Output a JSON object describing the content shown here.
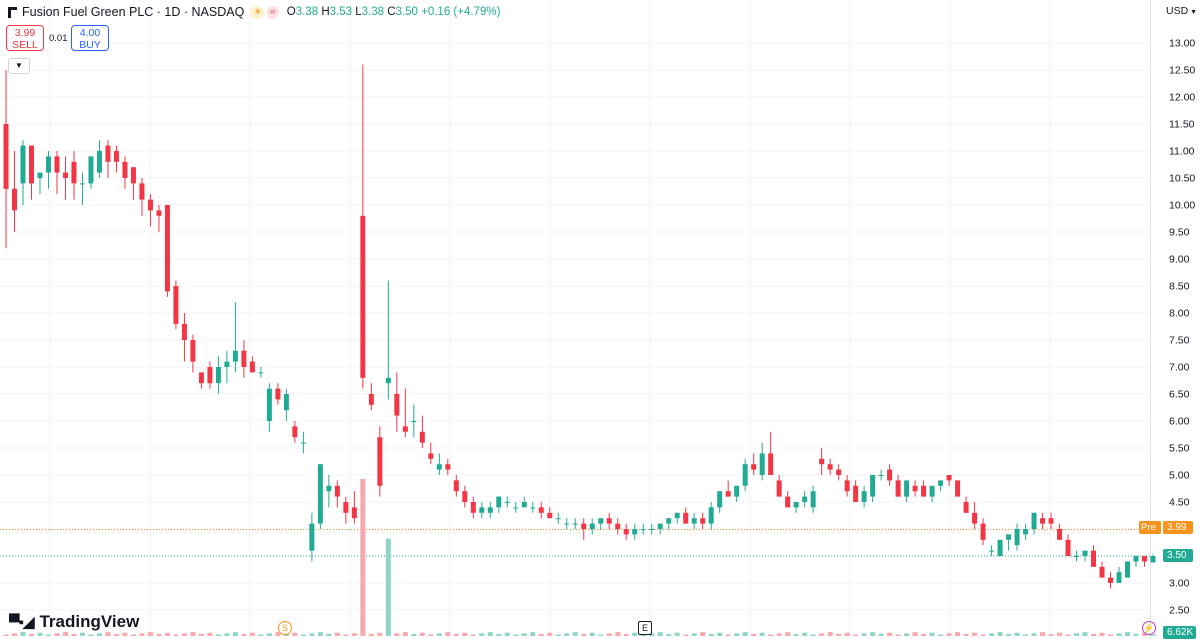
{
  "header": {
    "title": "Fusion Fuel Green PLC · 1D · NASDAQ",
    "o_label": "O",
    "o_value": "3.38",
    "h_label": "H",
    "h_value": "3.53",
    "l_label": "L",
    "l_value": "3.38",
    "c_label": "C",
    "c_value": "3.50",
    "change": "+0.16 (+4.79%)"
  },
  "trade": {
    "sell_price": "3.99",
    "sell_label": "SELL",
    "spread": "0.01",
    "buy_price": "4.00",
    "buy_label": "BUY"
  },
  "currency": "USD",
  "branding": "TradingView",
  "markers": {
    "pre_label": "Pre",
    "pre_price": "3.99",
    "last_price": "3.50",
    "volume": "6.62K"
  },
  "events": {
    "split": "S",
    "earnings": "E"
  },
  "icons": [
    "tradingview-logo-icon",
    "collapse-chevron-icon",
    "currency-dropdown-icon",
    "lightning-icon",
    "sun-icon",
    "approx-icon"
  ],
  "colors": {
    "up": "#22ab94",
    "down": "#f23645",
    "up_volume": "#8fd5c9",
    "down_volume": "#f8a8ae",
    "pre": "#f7931a",
    "grid": "#f0f3fa"
  },
  "chart_data": {
    "type": "candlestick",
    "ylim": [
      2.5,
      13.25
    ],
    "yticks": [
      "13.00",
      "12.50",
      "12.00",
      "11.50",
      "11.00",
      "10.50",
      "10.00",
      "9.50",
      "9.00",
      "8.50",
      "8.00",
      "7.50",
      "7.00",
      "6.50",
      "6.00",
      "5.50",
      "5.00",
      "4.50",
      "4.00",
      "3.50",
      "3.00",
      "2.50"
    ],
    "pre_market_price": 3.99,
    "last_price": 3.5,
    "ohlc": [
      [
        11.5,
        12.5,
        9.2,
        10.3
      ],
      [
        10.3,
        11.0,
        9.5,
        9.9
      ],
      [
        10.4,
        11.2,
        10.0,
        11.1
      ],
      [
        11.1,
        11.1,
        10.1,
        10.4
      ],
      [
        10.5,
        10.6,
        10.2,
        10.6
      ],
      [
        10.6,
        11.0,
        10.3,
        10.9
      ],
      [
        10.9,
        11.0,
        10.2,
        10.6
      ],
      [
        10.6,
        10.9,
        10.1,
        10.5
      ],
      [
        10.8,
        11.0,
        10.1,
        10.4
      ],
      [
        10.4,
        10.6,
        10.0,
        10.4
      ],
      [
        10.4,
        10.9,
        10.3,
        10.9
      ],
      [
        10.6,
        11.2,
        10.5,
        11.0
      ],
      [
        11.1,
        11.2,
        10.5,
        10.8
      ],
      [
        11.0,
        11.1,
        10.6,
        10.8
      ],
      [
        10.8,
        10.9,
        10.3,
        10.5
      ],
      [
        10.7,
        10.7,
        10.1,
        10.4
      ],
      [
        10.4,
        10.5,
        9.8,
        10.1
      ],
      [
        10.1,
        10.2,
        9.6,
        9.9
      ],
      [
        9.9,
        10.0,
        9.5,
        9.8
      ],
      [
        10.0,
        10.0,
        8.3,
        8.4
      ],
      [
        8.5,
        8.6,
        7.7,
        7.8
      ],
      [
        7.8,
        8.0,
        7.1,
        7.5
      ],
      [
        7.5,
        7.6,
        6.9,
        7.1
      ],
      [
        6.9,
        6.9,
        6.6,
        6.7
      ],
      [
        7.0,
        7.1,
        6.6,
        6.7
      ],
      [
        6.7,
        7.2,
        6.5,
        7.0
      ],
      [
        7.0,
        7.3,
        6.7,
        7.1
      ],
      [
        7.1,
        8.2,
        6.9,
        7.3
      ],
      [
        7.3,
        7.5,
        6.8,
        7.0
      ],
      [
        7.1,
        7.2,
        6.9,
        6.9
      ],
      [
        6.9,
        7.0,
        6.8,
        6.9
      ],
      [
        6.0,
        6.7,
        5.8,
        6.6
      ],
      [
        6.6,
        6.7,
        6.3,
        6.4
      ],
      [
        6.2,
        6.6,
        6.0,
        6.5
      ],
      [
        5.9,
        6.0,
        5.6,
        5.7
      ],
      [
        5.6,
        5.8,
        5.4,
        5.6
      ],
      [
        3.6,
        4.3,
        3.4,
        4.1
      ],
      [
        4.1,
        5.2,
        4.0,
        5.2
      ],
      [
        4.7,
        5.0,
        4.4,
        4.8
      ],
      [
        4.8,
        4.9,
        4.4,
        4.6
      ],
      [
        4.5,
        4.6,
        4.1,
        4.3
      ],
      [
        4.4,
        4.7,
        4.1,
        4.2
      ],
      [
        9.8,
        12.6,
        6.6,
        6.8
      ],
      [
        6.5,
        6.7,
        6.2,
        6.3
      ],
      [
        5.7,
        5.9,
        4.6,
        4.8
      ],
      [
        6.7,
        8.6,
        6.4,
        6.8
      ],
      [
        6.5,
        6.9,
        5.8,
        6.1
      ],
      [
        5.9,
        6.6,
        5.7,
        5.8
      ],
      [
        6.0,
        6.3,
        5.7,
        6.0
      ],
      [
        5.8,
        6.1,
        5.5,
        5.6
      ],
      [
        5.4,
        5.6,
        5.2,
        5.3
      ],
      [
        5.1,
        5.4,
        5.0,
        5.2
      ],
      [
        5.2,
        5.3,
        5.0,
        5.1
      ],
      [
        4.9,
        5.0,
        4.6,
        4.7
      ],
      [
        4.7,
        4.8,
        4.4,
        4.5
      ],
      [
        4.5,
        4.6,
        4.2,
        4.3
      ],
      [
        4.3,
        4.5,
        4.2,
        4.4
      ],
      [
        4.3,
        4.5,
        4.2,
        4.4
      ],
      [
        4.4,
        4.6,
        4.3,
        4.6
      ],
      [
        4.5,
        4.6,
        4.4,
        4.5
      ],
      [
        4.4,
        4.5,
        4.3,
        4.4
      ],
      [
        4.4,
        4.6,
        4.4,
        4.5
      ],
      [
        4.4,
        4.5,
        4.3,
        4.4
      ],
      [
        4.4,
        4.5,
        4.2,
        4.3
      ],
      [
        4.3,
        4.4,
        4.2,
        4.2
      ],
      [
        4.2,
        4.3,
        4.1,
        4.2
      ],
      [
        4.1,
        4.2,
        4.0,
        4.1
      ],
      [
        4.1,
        4.2,
        4.0,
        4.1
      ],
      [
        4.1,
        4.2,
        3.8,
        4.0
      ],
      [
        4.0,
        4.2,
        3.9,
        4.1
      ],
      [
        4.1,
        4.2,
        4.0,
        4.2
      ],
      [
        4.2,
        4.3,
        4.0,
        4.1
      ],
      [
        4.1,
        4.2,
        3.9,
        4.0
      ],
      [
        4.0,
        4.1,
        3.8,
        3.9
      ],
      [
        3.9,
        4.1,
        3.8,
        4.0
      ],
      [
        4.0,
        4.1,
        3.9,
        4.0
      ],
      [
        4.0,
        4.1,
        3.9,
        4.0
      ],
      [
        4.0,
        4.1,
        3.9,
        4.1
      ],
      [
        4.1,
        4.2,
        4.0,
        4.2
      ],
      [
        4.2,
        4.3,
        4.1,
        4.3
      ],
      [
        4.3,
        4.4,
        4.1,
        4.1
      ],
      [
        4.1,
        4.3,
        4.0,
        4.2
      ],
      [
        4.2,
        4.3,
        4.0,
        4.1
      ],
      [
        4.1,
        4.5,
        4.0,
        4.4
      ],
      [
        4.4,
        4.7,
        4.3,
        4.7
      ],
      [
        4.7,
        4.9,
        4.6,
        4.6
      ],
      [
        4.6,
        4.8,
        4.5,
        4.8
      ],
      [
        4.8,
        5.3,
        4.7,
        5.2
      ],
      [
        5.2,
        5.4,
        5.0,
        5.1
      ],
      [
        5.0,
        5.6,
        4.9,
        5.4
      ],
      [
        5.4,
        5.8,
        5.0,
        5.0
      ],
      [
        4.9,
        5.0,
        4.6,
        4.6
      ],
      [
        4.6,
        4.7,
        4.4,
        4.4
      ],
      [
        4.4,
        4.5,
        4.3,
        4.5
      ],
      [
        4.5,
        4.7,
        4.4,
        4.6
      ],
      [
        4.4,
        4.8,
        4.3,
        4.7
      ],
      [
        5.3,
        5.5,
        5.0,
        5.2
      ],
      [
        5.2,
        5.3,
        5.0,
        5.1
      ],
      [
        5.1,
        5.2,
        4.9,
        5.0
      ],
      [
        4.9,
        5.0,
        4.6,
        4.7
      ],
      [
        4.8,
        4.9,
        4.5,
        4.5
      ],
      [
        4.5,
        4.8,
        4.4,
        4.7
      ],
      [
        4.6,
        5.0,
        4.5,
        5.0
      ],
      [
        5.0,
        5.1,
        4.9,
        5.0
      ],
      [
        5.1,
        5.2,
        4.8,
        4.9
      ],
      [
        4.9,
        5.0,
        4.6,
        4.6
      ],
      [
        4.6,
        4.9,
        4.5,
        4.9
      ],
      [
        4.8,
        4.9,
        4.6,
        4.7
      ],
      [
        4.8,
        4.9,
        4.6,
        4.6
      ],
      [
        4.6,
        4.8,
        4.5,
        4.8
      ],
      [
        4.8,
        4.9,
        4.7,
        4.9
      ],
      [
        5.0,
        5.0,
        4.8,
        4.9
      ],
      [
        4.9,
        4.9,
        4.6,
        4.6
      ],
      [
        4.5,
        4.6,
        4.3,
        4.3
      ],
      [
        4.3,
        4.5,
        4.0,
        4.1
      ],
      [
        4.1,
        4.2,
        3.7,
        3.8
      ],
      [
        3.6,
        3.7,
        3.5,
        3.6
      ],
      [
        3.5,
        3.8,
        3.5,
        3.8
      ],
      [
        3.8,
        3.9,
        3.6,
        3.9
      ],
      [
        3.7,
        4.1,
        3.6,
        4.0
      ],
      [
        3.9,
        4.1,
        3.8,
        4.0
      ],
      [
        4.0,
        4.3,
        3.9,
        4.3
      ],
      [
        4.2,
        4.3,
        4.0,
        4.1
      ],
      [
        4.2,
        4.3,
        4.0,
        4.1
      ],
      [
        4.0,
        4.1,
        3.8,
        3.8
      ],
      [
        3.8,
        3.9,
        3.5,
        3.5
      ],
      [
        3.5,
        3.6,
        3.4,
        3.5
      ],
      [
        3.5,
        3.6,
        3.4,
        3.6
      ],
      [
        3.6,
        3.7,
        3.3,
        3.3
      ],
      [
        3.3,
        3.4,
        3.1,
        3.1
      ],
      [
        3.1,
        3.2,
        2.9,
        3.0
      ],
      [
        3.0,
        3.3,
        3.0,
        3.2
      ],
      [
        3.1,
        3.4,
        3.1,
        3.4
      ],
      [
        3.4,
        3.5,
        3.3,
        3.5
      ],
      [
        3.5,
        3.5,
        3.3,
        3.4
      ],
      [
        3.38,
        3.53,
        3.38,
        3.5
      ]
    ],
    "volume_spikes": [
      {
        "index": 42,
        "direction": "down",
        "relative": 1.0
      },
      {
        "index": 45,
        "direction": "up",
        "relative": 0.62
      }
    ]
  }
}
